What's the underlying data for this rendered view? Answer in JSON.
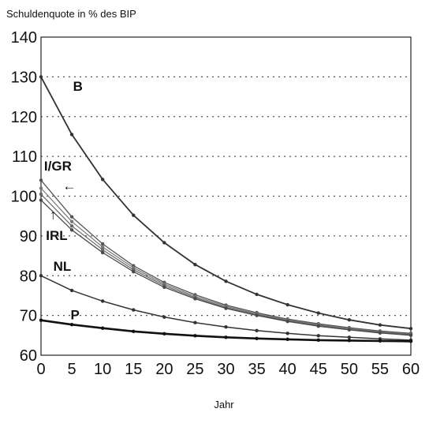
{
  "chart_data": {
    "type": "line",
    "ylabel": "Schuldenquote in % des BIP",
    "xlabel": "Jahr",
    "xlim": [
      0,
      60
    ],
    "ylim": [
      60,
      140
    ],
    "x_ticks": [
      "0",
      "5",
      "10",
      "15",
      "20",
      "25",
      "30",
      "35",
      "40",
      "45",
      "50",
      "55",
      "60"
    ],
    "y_ticks": [
      "60",
      "70",
      "80",
      "90",
      "100",
      "110",
      "120",
      "130",
      "140"
    ],
    "grid": "horizontal-dotted",
    "x": [
      0,
      5,
      10,
      15,
      20,
      25,
      30,
      35,
      40,
      45,
      50,
      55,
      60
    ],
    "series": [
      {
        "name": "B",
        "color": "#333333",
        "width": 1.8,
        "values": [
          130,
          115.5,
          104.2,
          95.2,
          88.3,
          82.8,
          78.6,
          75.3,
          72.7,
          70.6,
          68.9,
          67.6,
          66.7
        ]
      },
      {
        "name": "I/GR",
        "color": "#555555",
        "width": 1.3,
        "values": [
          104,
          94.8,
          88,
          82.5,
          78.3,
          75.2,
          72.6,
          70.7,
          69.1,
          67.9,
          66.9,
          66.1,
          65.5
        ]
      },
      {
        "name": "",
        "color": "#777777",
        "width": 1.2,
        "values": [
          102,
          93.6,
          87.2,
          82,
          77.9,
          74.8,
          72.3,
          70.4,
          68.9,
          67.7,
          66.7,
          65.9,
          65.3
        ]
      },
      {
        "name": "",
        "color": "#666666",
        "width": 1.2,
        "values": [
          100.5,
          92.5,
          86.5,
          81.5,
          77.5,
          74.5,
          72,
          70.2,
          68.7,
          67.5,
          66.5,
          65.8,
          65.2
        ]
      },
      {
        "name": "IRL",
        "color": "#4a4a4a",
        "width": 1.3,
        "values": [
          99,
          91.5,
          85.8,
          81,
          77.1,
          74.2,
          71.8,
          70,
          68.5,
          67.3,
          66.4,
          65.6,
          65
        ]
      },
      {
        "name": "NL",
        "color": "#333333",
        "width": 1.5,
        "values": [
          80,
          76.3,
          73.6,
          71.4,
          69.6,
          68.2,
          67.1,
          66.2,
          65.5,
          64.9,
          64.5,
          64.1,
          63.8
        ]
      },
      {
        "name": "P",
        "color": "#111111",
        "width": 2.6,
        "values": [
          68.8,
          67.7,
          66.8,
          66,
          65.4,
          64.9,
          64.5,
          64.2,
          64,
          63.8,
          63.7,
          63.6,
          63.5
        ]
      }
    ],
    "annotations": [
      {
        "text": "B",
        "x": 5.2,
        "y": 126.5
      },
      {
        "text": "I/GR",
        "x": 0.5,
        "y": 106.5
      },
      {
        "text": "←",
        "x": 3.5,
        "y": 101.5
      },
      {
        "text": "↑",
        "x": 1.4,
        "y": 94.2
      },
      {
        "text": "IRL",
        "x": 0.8,
        "y": 89
      },
      {
        "text": "NL",
        "x": 2.0,
        "y": 81.2
      },
      {
        "text": "P",
        "x": 4.8,
        "y": 69
      }
    ]
  }
}
